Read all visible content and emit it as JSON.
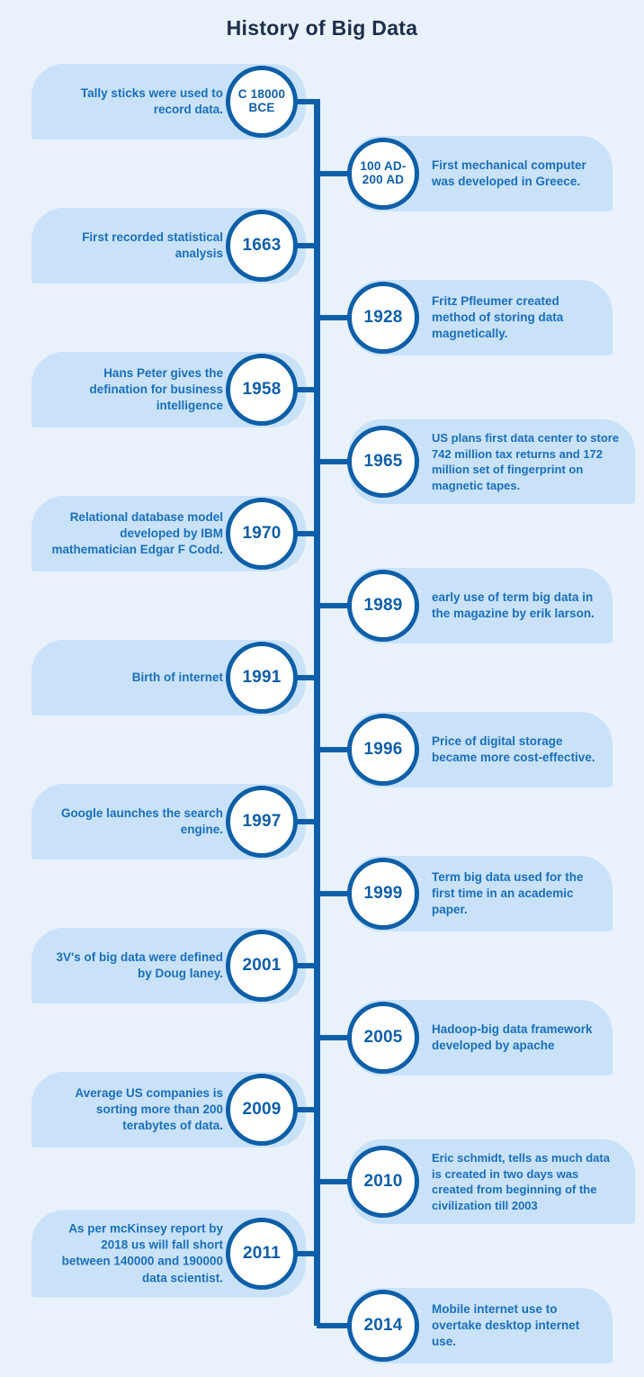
{
  "page": {
    "title": "History of Big Data"
  },
  "timeline": [
    {
      "side": "left",
      "year": "C 18000 BCE",
      "text": "Tally sticks were used to record data."
    },
    {
      "side": "right",
      "year": "100 AD-200 AD",
      "text": "First mechanical computer was developed in Greece."
    },
    {
      "side": "left",
      "year": "1663",
      "text": "First recorded statistical analysis"
    },
    {
      "side": "right",
      "year": "1928",
      "text": "Fritz Pfleumer created method of storing data magnetically."
    },
    {
      "side": "left",
      "year": "1958",
      "text": "Hans Peter gives the defination for business intelligence"
    },
    {
      "side": "right",
      "year": "1965",
      "text": "US plans first data center to store 742 million tax returns and 172 million set of fingerprint on magnetic tapes."
    },
    {
      "side": "left",
      "year": "1970",
      "text": "Relational database model developed by IBM mathematician Edgar F Codd."
    },
    {
      "side": "right",
      "year": "1989",
      "text": "early use of term big data in the magazine by erik larson."
    },
    {
      "side": "left",
      "year": "1991",
      "text": "Birth of internet"
    },
    {
      "side": "right",
      "year": "1996",
      "text": "Price of digital storage became more cost-effective."
    },
    {
      "side": "left",
      "year": "1997",
      "text": "Google launches the search engine."
    },
    {
      "side": "right",
      "year": "1999",
      "text": "Term big data used for the first time in an academic paper."
    },
    {
      "side": "left",
      "year": "2001",
      "text": "3V's of big data were defined by Doug laney."
    },
    {
      "side": "right",
      "year": "2005",
      "text": "Hadoop-big data framework developed by apache"
    },
    {
      "side": "left",
      "year": "2009",
      "text": "Average US companies is sorting more than 200 terabytes of data."
    },
    {
      "side": "right",
      "year": "2010",
      "text": "Eric schmidt, tells as much data is created in two days was created from beginning of the civilization till 2003"
    },
    {
      "side": "left",
      "year": "2011",
      "text": "As per mcKinsey report by 2018 us will fall short between 140000 and 190000 data scientist."
    },
    {
      "side": "right",
      "year": "2014",
      "text": "Mobile internet use to overtake desktop internet use."
    }
  ],
  "colors": {
    "background": "#e9f1fb",
    "bubble": "#c9e2f8",
    "line": "#0f5fa8",
    "body_text": "#1a6fba",
    "title_text": "#1c2e4a"
  }
}
